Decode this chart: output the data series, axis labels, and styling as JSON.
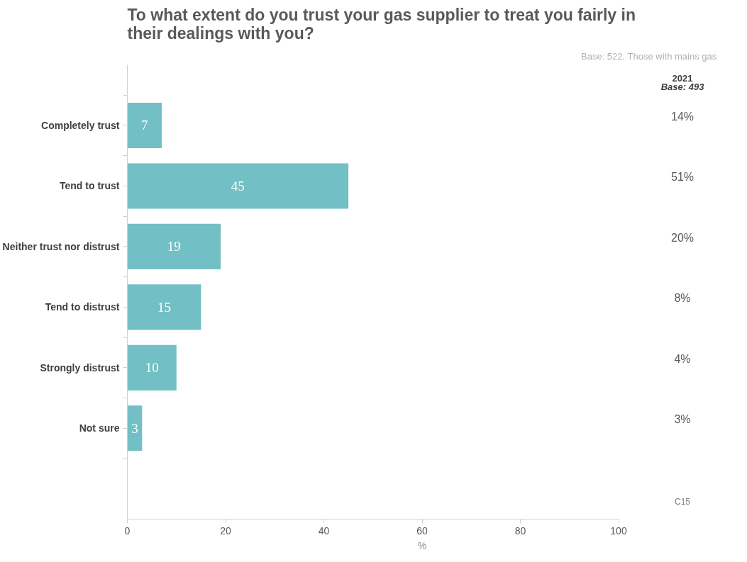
{
  "chart_data": {
    "type": "bar",
    "orientation": "horizontal",
    "title": "To what extent do you trust your gas supplier to treat you fairly in their dealings with you?",
    "subtitle": "Base: 522. Those with mains gas",
    "categories": [
      "Completely trust",
      "Tend to trust",
      "Neither trust nor distrust",
      "Tend to distrust",
      "Strongly distrust",
      "Not sure"
    ],
    "values": [
      7,
      45,
      19,
      15,
      10,
      3
    ],
    "color": "#72bfc5",
    "data_labels": true,
    "xlim": [
      0,
      100
    ],
    "xticks": [
      0,
      20,
      40,
      60,
      80,
      100
    ],
    "xlabel": "%",
    "grid": false,
    "annotations": [
      "2021",
      "Base: 493",
      "14%",
      "51%",
      "20%",
      "8%",
      "4%",
      "3%",
      "C15"
    ]
  }
}
